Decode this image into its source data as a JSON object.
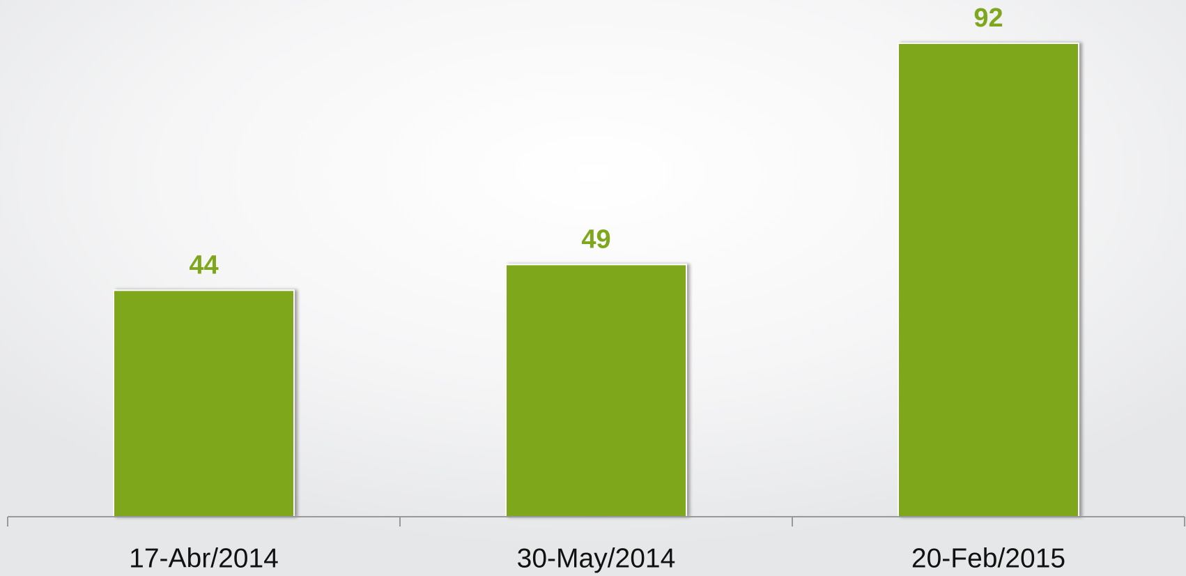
{
  "chart_data": {
    "type": "bar",
    "categories": [
      "17-Abr/2014",
      "30-May/2014",
      "20-Feb/2015"
    ],
    "values": [
      44,
      49,
      92
    ],
    "color": "#7ea71e",
    "ylim": [
      0,
      100
    ]
  }
}
